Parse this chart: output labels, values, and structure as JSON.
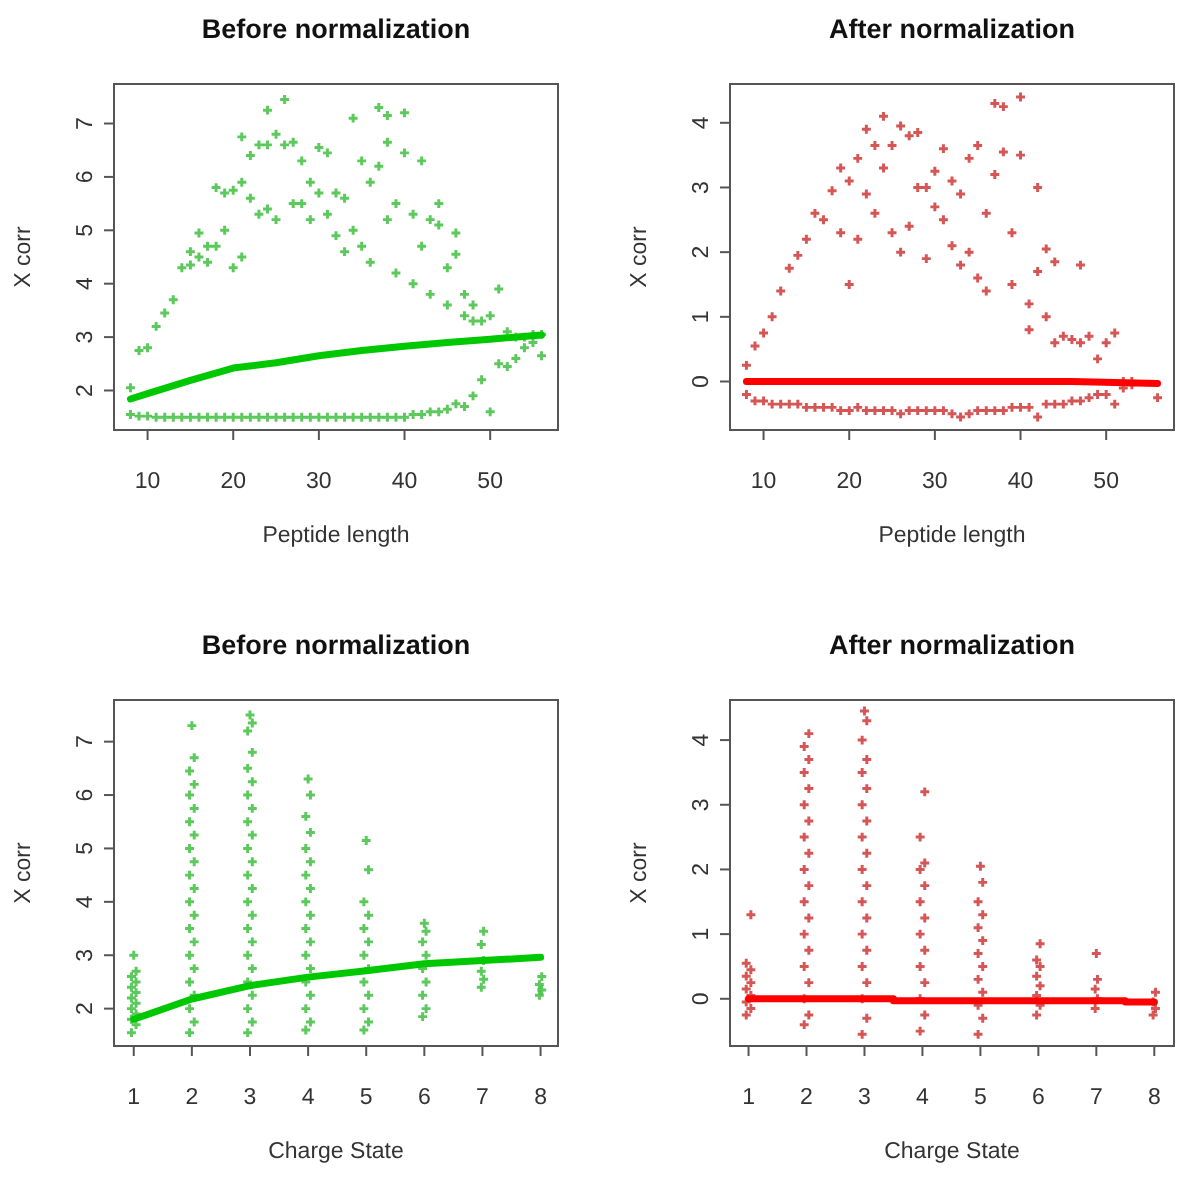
{
  "chart_data": [
    {
      "type": "scatter",
      "title": "Before normalization",
      "xlabel": "Peptide length",
      "ylabel": "X corr",
      "xlim": [
        6.08,
        57.92
      ],
      "ylim": [
        1.26,
        7.74
      ],
      "xticks": [
        10,
        20,
        30,
        40,
        50
      ],
      "yticks": [
        2,
        3,
        4,
        5,
        6,
        7
      ],
      "series": [
        {
          "type": "scatter",
          "marker": "cross",
          "color": "#33bb33",
          "x": [
            8,
            8,
            9,
            9,
            10,
            10,
            11,
            11,
            12,
            12,
            13,
            13,
            14,
            14,
            15,
            15,
            15,
            16,
            16,
            16,
            17,
            17,
            17,
            18,
            18,
            18,
            19,
            19,
            19,
            20,
            20,
            20,
            21,
            21,
            21,
            21,
            22,
            22,
            22,
            23,
            23,
            23,
            24,
            24,
            24,
            24,
            25,
            25,
            25,
            26,
            26,
            26,
            27,
            27,
            27,
            28,
            28,
            28,
            29,
            29,
            29,
            30,
            30,
            30,
            31,
            31,
            31,
            32,
            32,
            32,
            33,
            33,
            33,
            34,
            34,
            34,
            35,
            35,
            35,
            36,
            36,
            36,
            37,
            37,
            37,
            38,
            38,
            38,
            38,
            39,
            39,
            39,
            40,
            40,
            40,
            41,
            41,
            41,
            42,
            42,
            42,
            43,
            43,
            43,
            44,
            44,
            44,
            45,
            45,
            45,
            46,
            46,
            46,
            47,
            47,
            47,
            48,
            48,
            48,
            49,
            49,
            50,
            50,
            51,
            51,
            52,
            52,
            53,
            53,
            54,
            54,
            55,
            55,
            56,
            56
          ],
          "values": [
            1.55,
            2.05,
            1.52,
            2.75,
            1.52,
            2.8,
            1.5,
            3.2,
            1.5,
            3.45,
            1.5,
            3.7,
            1.5,
            4.3,
            1.5,
            4.35,
            4.6,
            1.5,
            4.5,
            4.95,
            1.5,
            4.4,
            4.7,
            1.5,
            4.7,
            5.8,
            1.5,
            5.0,
            5.7,
            1.5,
            4.3,
            5.75,
            1.5,
            4.5,
            5.9,
            6.75,
            1.5,
            5.6,
            6.4,
            1.5,
            5.3,
            6.6,
            1.5,
            5.4,
            6.6,
            7.25,
            1.5,
            5.2,
            6.8,
            1.5,
            6.6,
            7.45,
            1.5,
            5.5,
            6.65,
            1.5,
            5.5,
            6.3,
            1.5,
            5.2,
            5.9,
            1.5,
            5.7,
            6.55,
            1.5,
            5.3,
            6.45,
            1.5,
            4.9,
            5.7,
            1.5,
            4.6,
            5.6,
            1.5,
            5.0,
            7.1,
            1.5,
            4.7,
            6.3,
            1.5,
            4.4,
            5.9,
            1.5,
            6.2,
            7.3,
            1.5,
            5.2,
            6.65,
            7.15,
            1.5,
            4.2,
            5.5,
            1.5,
            6.45,
            7.2,
            1.55,
            4.0,
            5.3,
            1.55,
            4.7,
            6.3,
            1.6,
            3.8,
            5.2,
            1.6,
            5.1,
            5.5,
            1.65,
            3.6,
            4.3,
            1.75,
            4.55,
            4.95,
            1.7,
            3.4,
            3.8,
            1.9,
            3.3,
            3.6,
            2.2,
            3.3,
            1.6,
            3.4,
            2.5,
            3.9,
            2.45,
            3.1,
            2.6,
            3.0,
            2.8,
            3.0,
            2.9,
            3.05,
            2.65,
            3.05
          ]
        },
        {
          "type": "line",
          "color": "#00c800",
          "x": [
            8,
            10,
            15,
            20,
            25,
            30,
            35,
            40,
            45,
            50,
            56
          ],
          "values": [
            1.84,
            1.94,
            2.19,
            2.42,
            2.52,
            2.65,
            2.75,
            2.83,
            2.9,
            2.96,
            3.04
          ]
        }
      ]
    },
    {
      "type": "scatter",
      "title": "After normalization",
      "xlabel": "Peptide length",
      "ylabel": "X corr",
      "xlim": [
        6.08,
        57.92
      ],
      "ylim": [
        -0.75,
        4.6
      ],
      "xticks": [
        10,
        20,
        30,
        40,
        50
      ],
      "yticks": [
        0,
        1,
        2,
        3,
        4
      ],
      "series": [
        {
          "type": "scatter",
          "marker": "cross",
          "color": "#cc2a2a",
          "x": [
            8,
            8,
            9,
            9,
            10,
            10,
            11,
            11,
            12,
            12,
            13,
            13,
            14,
            14,
            15,
            15,
            16,
            16,
            17,
            17,
            18,
            18,
            19,
            19,
            19,
            20,
            20,
            20,
            21,
            21,
            21,
            22,
            22,
            22,
            23,
            23,
            23,
            24,
            24,
            24,
            25,
            25,
            25,
            26,
            26,
            26,
            27,
            27,
            27,
            28,
            28,
            28,
            29,
            29,
            29,
            30,
            30,
            30,
            31,
            31,
            31,
            32,
            32,
            32,
            33,
            33,
            33,
            34,
            34,
            34,
            35,
            35,
            35,
            36,
            36,
            36,
            37,
            37,
            37,
            38,
            38,
            38,
            39,
            39,
            39,
            40,
            40,
            40,
            41,
            41,
            41,
            42,
            42,
            42,
            43,
            43,
            43,
            44,
            44,
            44,
            45,
            45,
            46,
            46,
            47,
            47,
            47,
            48,
            48,
            49,
            49,
            50,
            50,
            51,
            51,
            52,
            52,
            53,
            53,
            56
          ],
          "values": [
            -0.2,
            0.25,
            -0.3,
            0.55,
            -0.3,
            0.75,
            -0.35,
            1.0,
            -0.35,
            1.4,
            -0.35,
            1.75,
            -0.35,
            1.95,
            -0.4,
            2.2,
            -0.4,
            2.6,
            -0.4,
            2.5,
            -0.4,
            2.95,
            -0.45,
            2.3,
            3.3,
            -0.45,
            1.5,
            3.1,
            -0.4,
            2.2,
            3.45,
            -0.45,
            2.9,
            3.9,
            -0.45,
            2.6,
            3.65,
            -0.45,
            3.3,
            4.1,
            -0.45,
            2.3,
            3.65,
            -0.5,
            2.0,
            3.95,
            -0.45,
            2.4,
            3.8,
            -0.45,
            3.0,
            3.85,
            -0.45,
            1.9,
            3.0,
            -0.45,
            2.7,
            3.25,
            -0.45,
            2.5,
            3.6,
            -0.5,
            2.1,
            3.1,
            -0.55,
            1.8,
            2.9,
            -0.5,
            2.0,
            3.45,
            -0.45,
            1.6,
            3.65,
            -0.45,
            1.4,
            2.6,
            -0.45,
            3.2,
            4.3,
            -0.45,
            3.55,
            4.25,
            -0.4,
            1.5,
            2.3,
            -0.4,
            3.5,
            4.4,
            -0.4,
            0.8,
            1.2,
            -0.55,
            1.7,
            3.0,
            -0.35,
            1.0,
            2.05,
            -0.35,
            0.6,
            1.85,
            -0.35,
            0.7,
            -0.3,
            0.65,
            -0.3,
            0.6,
            1.8,
            -0.25,
            0.7,
            -0.2,
            0.35,
            -0.2,
            0.6,
            -0.35,
            0.75,
            -0.1,
            0.0,
            -0.05,
            0.0,
            -0.25
          ]
        },
        {
          "type": "line",
          "color": "#ff0000",
          "x": [
            8,
            46,
            56
          ],
          "values": [
            0,
            0,
            -0.03
          ]
        }
      ]
    },
    {
      "type": "scatter",
      "title": "Before normalization",
      "xlabel": "Charge State",
      "ylabel": "X corr",
      "xlim": [
        0.66,
        8.3
      ],
      "ylim": [
        1.3,
        7.78
      ],
      "xticks": [
        1,
        2,
        3,
        4,
        5,
        6,
        7,
        8
      ],
      "yticks": [
        2,
        3,
        4,
        5,
        6,
        7
      ],
      "series": [
        {
          "type": "scatter",
          "marker": "cross",
          "color": "#33bb33",
          "x": [
            0.96,
            1.04,
            0.96,
            1.04,
            0.96,
            1.04,
            0.96,
            1.04,
            0.96,
            1.04,
            0.96,
            1.04,
            1.0,
            1.96,
            2.04,
            1.96,
            2.04,
            1.96,
            2.04,
            1.96,
            2.04,
            1.96,
            2.04,
            1.96,
            2.04,
            1.96,
            2.04,
            1.96,
            2.04,
            1.96,
            2.04,
            1.96,
            2.04,
            1.96,
            2.04,
            2.0,
            2.96,
            3.04,
            2.96,
            3.04,
            2.96,
            3.04,
            2.96,
            3.04,
            2.96,
            3.04,
            2.96,
            3.04,
            2.96,
            3.04,
            2.96,
            3.04,
            2.96,
            3.04,
            2.96,
            3.04,
            2.96,
            3.04,
            2.96,
            3.04,
            3.0,
            3.96,
            4.04,
            3.96,
            4.04,
            3.96,
            4.04,
            3.96,
            4.04,
            3.96,
            4.04,
            3.96,
            4.04,
            3.96,
            4.04,
            3.96,
            4.04,
            3.96,
            4.04,
            4.0,
            4.96,
            5.04,
            4.96,
            5.04,
            4.96,
            5.04,
            4.96,
            5.04,
            4.96,
            5.04,
            4.96,
            5.04,
            5.0,
            5.97,
            6.03,
            5.97,
            6.03,
            5.97,
            6.03,
            5.97,
            6.03,
            6.0,
            6.98,
            7.02,
            6.98,
            7.02,
            6.98,
            7.02,
            7.98,
            8.02,
            7.98,
            8.02
          ],
          "values": [
            1.55,
            1.7,
            1.8,
            1.9,
            2.0,
            2.1,
            2.2,
            2.3,
            2.4,
            2.5,
            2.6,
            2.7,
            3.0,
            1.55,
            1.75,
            2.0,
            2.25,
            2.5,
            2.75,
            3.0,
            3.25,
            3.5,
            3.75,
            4.0,
            4.25,
            4.5,
            4.75,
            5.0,
            5.25,
            5.5,
            5.75,
            6.0,
            6.2,
            6.45,
            6.7,
            7.3,
            1.55,
            1.75,
            2.0,
            2.25,
            2.5,
            2.75,
            3.0,
            3.25,
            3.5,
            3.75,
            4.0,
            4.25,
            4.5,
            4.75,
            5.0,
            5.25,
            5.5,
            5.75,
            6.0,
            6.25,
            6.5,
            6.8,
            7.2,
            7.35,
            7.5,
            1.6,
            1.75,
            2.0,
            2.25,
            2.5,
            2.75,
            3.0,
            3.25,
            3.5,
            3.75,
            4.0,
            4.25,
            4.5,
            4.75,
            5.0,
            5.3,
            5.6,
            6.0,
            6.3,
            1.6,
            1.75,
            2.0,
            2.25,
            2.5,
            2.75,
            3.0,
            3.25,
            3.5,
            3.75,
            4.0,
            4.6,
            5.15,
            1.85,
            2.0,
            2.25,
            2.5,
            2.75,
            3.0,
            3.25,
            3.45,
            3.6,
            2.4,
            2.55,
            2.7,
            2.9,
            3.2,
            3.45,
            2.25,
            2.35,
            2.45,
            2.6
          ]
        },
        {
          "type": "line",
          "color": "#00c800",
          "x": [
            1,
            2,
            3,
            4,
            5,
            6,
            7,
            8
          ],
          "values": [
            1.8,
            2.18,
            2.43,
            2.59,
            2.71,
            2.84,
            2.9,
            2.96
          ]
        }
      ]
    },
    {
      "type": "scatter",
      "title": "After normalization",
      "xlabel": "Charge State",
      "ylabel": "X corr",
      "xlim": [
        0.68,
        8.34
      ],
      "ylim": [
        -0.73,
        4.62
      ],
      "xticks": [
        1,
        2,
        3,
        4,
        5,
        6,
        7,
        8
      ],
      "yticks": [
        0,
        1,
        2,
        3,
        4
      ],
      "series": [
        {
          "type": "scatter",
          "marker": "cross",
          "color": "#cc2a2a",
          "x": [
            0.96,
            1.04,
            0.96,
            1.04,
            0.96,
            1.04,
            0.96,
            1.04,
            0.96,
            1.04,
            1.96,
            2.04,
            1.96,
            2.04,
            1.96,
            2.04,
            1.96,
            2.04,
            1.96,
            2.04,
            1.96,
            2.04,
            1.96,
            2.04,
            1.96,
            2.04,
            1.96,
            2.04,
            1.96,
            2.04,
            2.96,
            3.04,
            2.96,
            3.04,
            2.96,
            3.04,
            2.96,
            3.04,
            2.96,
            3.04,
            2.96,
            3.04,
            2.96,
            3.04,
            2.96,
            3.04,
            2.96,
            3.04,
            2.96,
            3.04,
            3.0,
            3.96,
            4.04,
            3.96,
            4.04,
            3.96,
            4.04,
            3.96,
            4.04,
            3.96,
            4.04,
            3.96,
            4.04,
            3.96,
            4.04,
            4.96,
            5.04,
            4.96,
            5.04,
            4.96,
            5.04,
            4.96,
            5.04,
            4.96,
            5.04,
            4.96,
            5.04,
            5.0,
            5.97,
            6.03,
            5.97,
            6.03,
            5.97,
            6.03,
            5.97,
            6.03,
            6.98,
            7.02,
            6.98,
            7.02,
            7.0,
            7.98,
            8.02,
            7.98,
            8.02
          ],
          "values": [
            -0.25,
            -0.15,
            -0.05,
            0.05,
            0.15,
            0.25,
            0.35,
            0.45,
            0.55,
            1.3,
            -0.4,
            -0.25,
            0.0,
            0.25,
            0.5,
            0.75,
            1.0,
            1.25,
            1.5,
            1.75,
            2.0,
            2.25,
            2.5,
            2.75,
            3.0,
            3.25,
            3.5,
            3.7,
            3.9,
            4.1,
            -0.55,
            -0.3,
            0.0,
            0.25,
            0.5,
            0.75,
            1.0,
            1.25,
            1.5,
            1.75,
            2.0,
            2.25,
            2.5,
            2.75,
            3.0,
            3.25,
            3.5,
            3.7,
            4.0,
            4.3,
            4.45,
            -0.5,
            -0.25,
            0.0,
            0.25,
            0.5,
            0.75,
            1.0,
            1.25,
            1.5,
            1.75,
            2.0,
            2.1,
            2.5,
            3.2,
            -0.55,
            -0.3,
            -0.1,
            0.1,
            0.3,
            0.5,
            0.7,
            0.9,
            1.1,
            1.3,
            1.5,
            1.8,
            2.05,
            -0.25,
            -0.1,
            0.05,
            0.2,
            0.35,
            0.5,
            0.6,
            0.85,
            -0.15,
            0.0,
            0.15,
            0.3,
            0.7,
            -0.25,
            -0.15,
            -0.05,
            0.1
          ]
        },
        {
          "type": "line",
          "color": "#ff0000",
          "x": [
            1,
            3.5,
            3.5,
            7.5,
            7.5,
            8
          ],
          "values": [
            0,
            0,
            -0.03,
            -0.03,
            -0.05,
            -0.05
          ]
        }
      ]
    }
  ]
}
